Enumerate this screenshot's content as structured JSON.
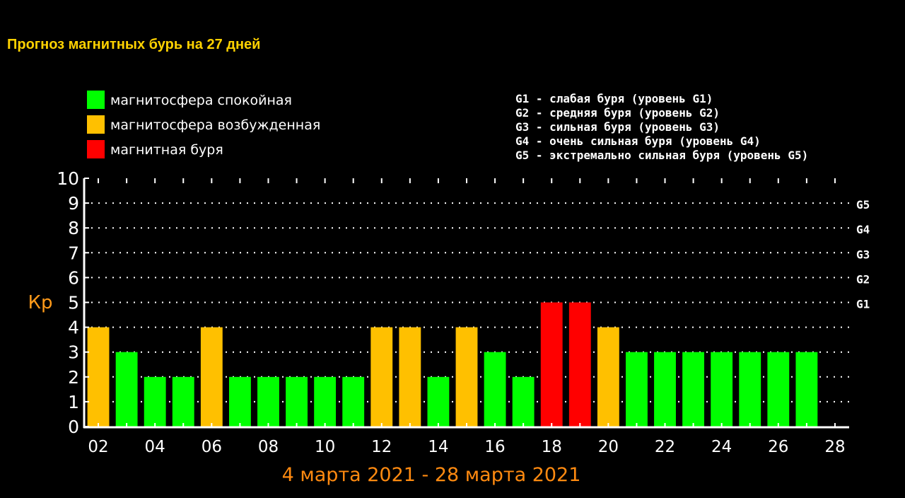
{
  "chart_data": {
    "type": "bar",
    "title": "Прогноз магнитных бурь на 27 дней",
    "ylabel": "Кр",
    "xlabel": "4 марта 2021 - 28 марта 2021",
    "ylim": [
      0,
      10
    ],
    "yticks": [
      "0",
      "1",
      "2",
      "3",
      "4",
      "5",
      "6",
      "7",
      "8",
      "9",
      "10"
    ],
    "x_range": [
      1.5,
      28.5
    ],
    "xticks": [
      {
        "value": 2,
        "label": "02"
      },
      {
        "value": 4,
        "label": "04"
      },
      {
        "value": 6,
        "label": "06"
      },
      {
        "value": 8,
        "label": "08"
      },
      {
        "value": 10,
        "label": "10"
      },
      {
        "value": 12,
        "label": "12"
      },
      {
        "value": 14,
        "label": "14"
      },
      {
        "value": 16,
        "label": "16"
      },
      {
        "value": 18,
        "label": "18"
      },
      {
        "value": 20,
        "label": "20"
      },
      {
        "value": 22,
        "label": "22"
      },
      {
        "value": 24,
        "label": "24"
      },
      {
        "value": 26,
        "label": "26"
      },
      {
        "value": 28,
        "label": "28"
      }
    ],
    "grid": true,
    "right_axis_ticks": [
      {
        "value": 5,
        "label": "G1"
      },
      {
        "value": 6,
        "label": "G2"
      },
      {
        "value": 7,
        "label": "G3"
      },
      {
        "value": 8,
        "label": "G4"
      },
      {
        "value": 9,
        "label": "G5"
      }
    ],
    "levels": {
      "calm": {
        "label": "магнитосфера спокойная",
        "color": "#00ff00"
      },
      "excited": {
        "label": "магнитосфера возбужденная",
        "color": "#ffc000"
      },
      "storm": {
        "label": "магнитная буря",
        "color": "#ff0000"
      }
    },
    "bars": [
      {
        "x": 2,
        "value": 4,
        "level": "excited"
      },
      {
        "x": 3,
        "value": 3,
        "level": "calm"
      },
      {
        "x": 4,
        "value": 2,
        "level": "calm"
      },
      {
        "x": 5,
        "value": 2,
        "level": "calm"
      },
      {
        "x": 6,
        "value": 4,
        "level": "excited"
      },
      {
        "x": 7,
        "value": 2,
        "level": "calm"
      },
      {
        "x": 8,
        "value": 2,
        "level": "calm"
      },
      {
        "x": 9,
        "value": 2,
        "level": "calm"
      },
      {
        "x": 10,
        "value": 2,
        "level": "calm"
      },
      {
        "x": 11,
        "value": 2,
        "level": "calm"
      },
      {
        "x": 12,
        "value": 4,
        "level": "excited"
      },
      {
        "x": 13,
        "value": 4,
        "level": "excited"
      },
      {
        "x": 14,
        "value": 2,
        "level": "calm"
      },
      {
        "x": 15,
        "value": 4,
        "level": "excited"
      },
      {
        "x": 16,
        "value": 3,
        "level": "calm"
      },
      {
        "x": 17,
        "value": 2,
        "level": "calm"
      },
      {
        "x": 18,
        "value": 5,
        "level": "storm"
      },
      {
        "x": 19,
        "value": 5,
        "level": "storm"
      },
      {
        "x": 20,
        "value": 4,
        "level": "excited"
      },
      {
        "x": 21,
        "value": 3,
        "level": "calm"
      },
      {
        "x": 22,
        "value": 3,
        "level": "calm"
      },
      {
        "x": 23,
        "value": 3,
        "level": "calm"
      },
      {
        "x": 24,
        "value": 3,
        "level": "calm"
      },
      {
        "x": 25,
        "value": 3,
        "level": "calm"
      },
      {
        "x": 26,
        "value": 3,
        "level": "calm"
      },
      {
        "x": 27,
        "value": 3,
        "level": "calm"
      }
    ],
    "legend": [
      {
        "level": "calm",
        "label": "магнитосфера спокойная"
      },
      {
        "level": "excited",
        "label": "магнитосфера возбужденная"
      },
      {
        "level": "storm",
        "label": "магнитная буря"
      }
    ],
    "storm_scale": [
      "G1 - слабая буря (уровень G1)",
      "G2 - средняя буря (уровень G2)",
      "G3 - сильная буря (уровень G3)",
      "G4 - очень сильная буря (уровень G4)",
      "G5 - экстремально сильная буря (уровень G5)"
    ]
  }
}
